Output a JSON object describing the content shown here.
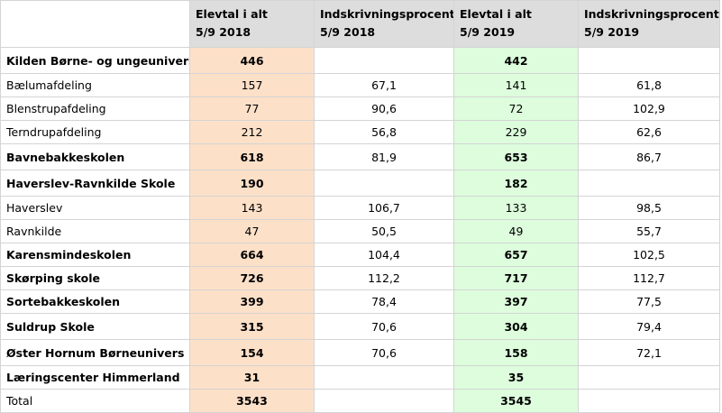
{
  "headers": [
    {
      "line1": "",
      "line2": ""
    },
    {
      "line1": "Elevtal i alt",
      "line2": "5/9 2018"
    },
    {
      "line1": "Indskrivningsprocent",
      "line2": "5/9 2018"
    },
    {
      "line1": "Elevtal i alt",
      "line2": "5/9 2019"
    },
    {
      "line1": "Indskrivningsprocent",
      "line2": "5/9 2019"
    }
  ],
  "rows": [
    {
      "name": "Kilden Børne- og ungeunivers",
      "n2018": "446",
      "p2018": "",
      "n2019": "442",
      "p2019": "",
      "bold": true
    },
    {
      "name": "Bælumafdeling",
      "n2018": "157",
      "p2018": "67,1",
      "n2019": "141",
      "p2019": "61,8",
      "bold": false
    },
    {
      "name": "Blenstrupafdeling",
      "n2018": "77",
      "p2018": "90,6",
      "n2019": "72",
      "p2019": "102,9",
      "bold": false
    },
    {
      "name": "Terndrupafdeling",
      "n2018": "212",
      "p2018": "56,8",
      "n2019": "229",
      "p2019": "62,6",
      "bold": false
    },
    {
      "name": "Bavnebakkeskolen",
      "n2018": "618",
      "p2018": "81,9",
      "n2019": "653",
      "p2019": "86,7",
      "bold": true
    },
    {
      "name": "Haverslev-Ravnkilde Skole",
      "n2018": "190",
      "p2018": "",
      "n2019": "182",
      "p2019": "",
      "bold": true
    },
    {
      "name": "Haverslev",
      "n2018": "143",
      "p2018": "106,7",
      "n2019": "133",
      "p2019": "98,5",
      "bold": false
    },
    {
      "name": "Ravnkilde",
      "n2018": "47",
      "p2018": "50,5",
      "n2019": "49",
      "p2019": "55,7",
      "bold": false
    },
    {
      "name": "Karensmindeskolen",
      "n2018": "664",
      "p2018": "104,4",
      "n2019": "657",
      "p2019": "102,5",
      "bold": true
    },
    {
      "name": "Skørping skole",
      "n2018": "726",
      "p2018": "112,2",
      "n2019": "717",
      "p2019": "112,7",
      "bold": true
    },
    {
      "name": "Sortebakkeskolen",
      "n2018": "399",
      "p2018": "78,4",
      "n2019": "397",
      "p2019": "77,5",
      "bold": true
    },
    {
      "name": "Suldrup Skole",
      "n2018": "315",
      "p2018": "70,6",
      "n2019": "304",
      "p2019": "79,4",
      "bold": true
    },
    {
      "name": "Øster Hornum Børneunivers",
      "n2018": "154",
      "p2018": "70,6",
      "n2019": "158",
      "p2019": "72,1",
      "bold": true
    },
    {
      "name": "Læringscenter Himmerland",
      "n2018": "31",
      "p2018": "",
      "n2019": "35",
      "p2019": "",
      "bold": true
    },
    {
      "name": "Total",
      "n2018": "3543",
      "p2018": "",
      "n2019": "3545",
      "p2019": "",
      "bold": false,
      "total": true
    }
  ]
}
